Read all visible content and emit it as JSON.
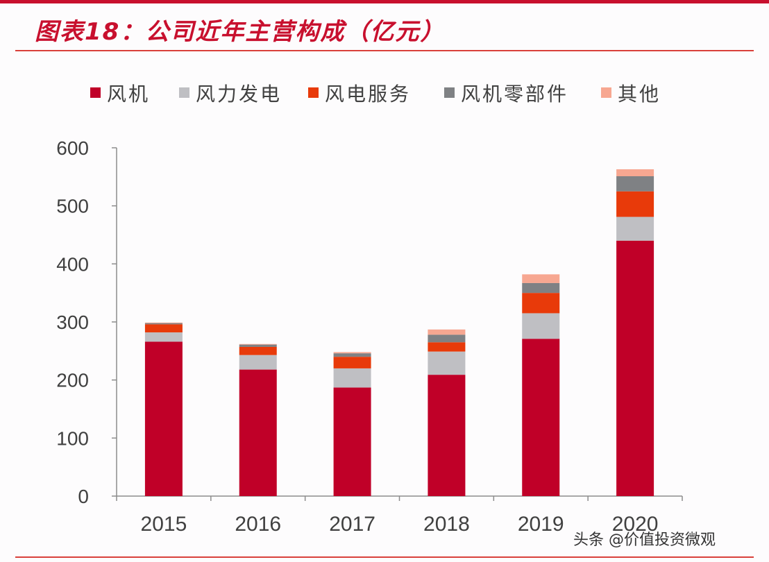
{
  "title": "图表18：公司近年主营构成（亿元）",
  "watermark": "头条 @价值投资微观",
  "chart_data": {
    "type": "bar",
    "stacked": true,
    "title": "图表18：公司近年主营构成（亿元）",
    "xlabel": "",
    "ylabel": "",
    "ylim": [
      0,
      600
    ],
    "yticks": [
      "0",
      "100",
      "200",
      "300",
      "400",
      "500",
      "600"
    ],
    "categories": [
      "2015",
      "2016",
      "2017",
      "2018",
      "2019",
      "2020"
    ],
    "legend_position": "top",
    "grid": false,
    "series": [
      {
        "name": "风机",
        "color": "#c00028",
        "values": [
          266,
          218,
          187,
          209,
          271,
          440
        ]
      },
      {
        "name": "风力发电",
        "color": "#bfbfc3",
        "values": [
          16,
          25,
          33,
          40,
          44,
          41
        ]
      },
      {
        "name": "风电服务",
        "color": "#e83a0a",
        "values": [
          14,
          14,
          20,
          16,
          35,
          44
        ]
      },
      {
        "name": "风机零部件",
        "color": "#7f8184",
        "values": [
          2,
          4,
          6,
          13,
          17,
          26
        ]
      },
      {
        "name": "其他",
        "color": "#f7a791",
        "values": [
          1,
          1,
          2,
          9,
          15,
          12
        ]
      }
    ]
  }
}
